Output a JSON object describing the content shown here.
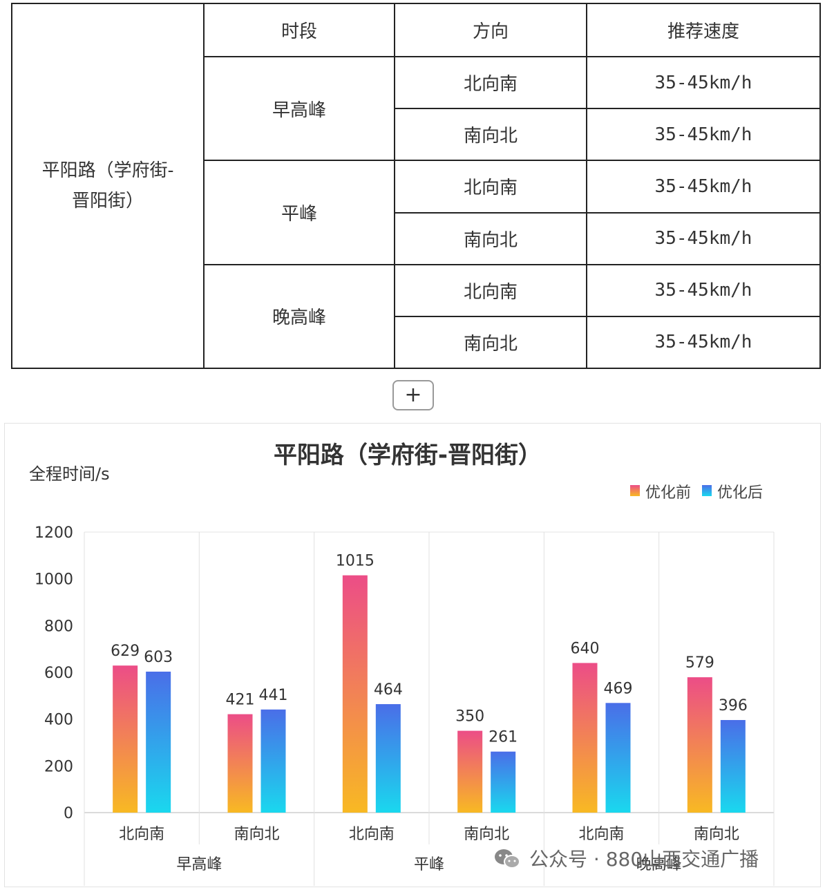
{
  "table": {
    "headers": [
      "时段",
      "方向",
      "推荐速度"
    ],
    "road": "平阳路（学府街-晋阳街）",
    "road_lines": [
      "平阳路（学府街-",
      "晋阳街）"
    ],
    "periods": [
      {
        "name": "早高峰",
        "rows": [
          {
            "dir": "北向南",
            "speed": "35-45km/h"
          },
          {
            "dir": "南向北",
            "speed": "35-45km/h"
          }
        ]
      },
      {
        "name": "平峰",
        "rows": [
          {
            "dir": "北向南",
            "speed": "35-45km/h"
          },
          {
            "dir": "南向北",
            "speed": "35-45km/h"
          }
        ]
      },
      {
        "name": "晚高峰",
        "rows": [
          {
            "dir": "北向南",
            "speed": "35-45km/h"
          },
          {
            "dir": "南向北",
            "speed": "35-45km/h"
          }
        ]
      }
    ]
  },
  "plus_label": "+",
  "watermark": "公众号 · 880山西交通广播",
  "chart_data": {
    "type": "bar",
    "title": "平阳路（学府街-晋阳街）",
    "ylabel": "全程时间/s",
    "ylim": [
      0,
      1200
    ],
    "yticks": [
      0,
      200,
      400,
      600,
      800,
      1000,
      1200
    ],
    "legend_position": "top-right",
    "grid": "vertical separators",
    "categories": [
      "北向南",
      "南向北",
      "北向南",
      "南向北",
      "北向南",
      "南向北"
    ],
    "groups": [
      "早高峰",
      "平峰",
      "晚高峰"
    ],
    "series": [
      {
        "name": "优化前",
        "values": [
          629,
          421,
          1015,
          350,
          640,
          579
        ],
        "color_top": "#ec4d87",
        "color_bottom": "#f8b923"
      },
      {
        "name": "优化后",
        "values": [
          603,
          441,
          464,
          261,
          469,
          396
        ],
        "color_top": "#4a6ee8",
        "color_bottom": "#1ad8ee"
      }
    ]
  }
}
